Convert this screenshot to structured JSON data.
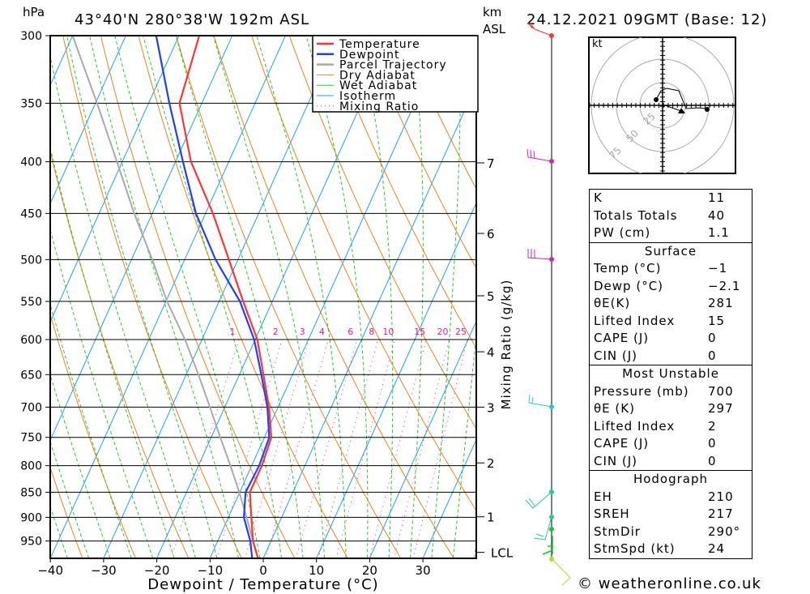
{
  "header": {
    "unit_left": "hPa",
    "location": "43°40'N  280°38'W  192m  ASL",
    "unit_km": "km",
    "unit_asl": "ASL",
    "datetime": "24.12.2021  09GMT  (Base: 12)"
  },
  "chart_data": {
    "type": "line",
    "title": "43°40'N 280°38'W 192m ASL",
    "xlabel": "Dewpoint / Temperature (°C)",
    "ylabel": "hPa",
    "y2label": "Mixing Ratio (g/kg)",
    "xlim": [
      -40,
      40
    ],
    "ylim": [
      988,
      300
    ],
    "x_ticks": [
      "−40",
      "−30",
      "−20",
      "−10",
      "0",
      "10",
      "20",
      "30"
    ],
    "x_tick_values": [
      -40,
      -30,
      -20,
      -10,
      0,
      10,
      20,
      30
    ],
    "y_ticks": [
      300,
      350,
      400,
      450,
      500,
      550,
      600,
      650,
      700,
      750,
      800,
      850,
      900,
      950
    ],
    "km_ticks": [
      {
        "km": "7",
        "p": 401
      },
      {
        "km": "6",
        "p": 471
      },
      {
        "km": "5",
        "p": 543
      },
      {
        "km": "4",
        "p": 617
      },
      {
        "km": "3",
        "p": 700
      },
      {
        "km": "2",
        "p": 795
      },
      {
        "km": "1",
        "p": 899
      },
      {
        "km": "LCL",
        "p": 975
      }
    ],
    "mixing_ratios": [
      "1",
      "2",
      "3",
      "4",
      "6",
      "8",
      "10",
      "15",
      "20",
      "25"
    ],
    "pressure": [
      300,
      350,
      400,
      450,
      500,
      550,
      600,
      650,
      700,
      750,
      800,
      850,
      900,
      950,
      988
    ],
    "series": [
      {
        "name": "Temperature",
        "color": "#ff3333",
        "values": [
          -56.2,
          -54.2,
          -47.1,
          -38.6,
          -31.7,
          -25.5,
          -19.6,
          -15.5,
          -11.7,
          -8.7,
          -8.1,
          -8.1,
          -5.7,
          -3.4,
          -1.0
        ]
      },
      {
        "name": "Dewpoint",
        "color": "#1f3fff",
        "values": [
          -64.3,
          -56.1,
          -48.6,
          -41.8,
          -34.2,
          -26.1,
          -20.2,
          -15.9,
          -12.0,
          -9.1,
          -8.6,
          -8.9,
          -7.1,
          -3.9,
          -2.1
        ]
      },
      {
        "name": "Parcel Trajectory",
        "color": "#aaaaaa",
        "values": [
          -80.0,
          -69.7,
          -61.0,
          -53.4,
          -46.1,
          -39.8,
          -33.2,
          -27.7,
          -22.8,
          -18.3,
          -14.0,
          -10.1,
          -6.6,
          -3.4,
          -1.0
        ]
      }
    ],
    "legend": {
      "placement": "top-right",
      "items": [
        {
          "label": "Temperature",
          "color": "#ff3333"
        },
        {
          "label": "Dewpoint",
          "color": "#1f3fff"
        },
        {
          "label": "Parcel Trajectory",
          "color": "#aaaaaa"
        },
        {
          "label": "Dry Adiabat",
          "color": "#f08020"
        },
        {
          "label": "Wet Adiabat",
          "color": "#22cc22"
        },
        {
          "label": "Isotherm",
          "color": "#1aa0ff"
        },
        {
          "label": "Mixing Ratio",
          "color": "#ff1493"
        }
      ]
    },
    "grid": true
  },
  "hodograph": {
    "unit": "kt",
    "rings": [
      "25",
      "50",
      "75"
    ]
  },
  "stats": {
    "indices": [
      {
        "label": "K",
        "value": "11"
      },
      {
        "label": "Totals Totals",
        "value": "40"
      },
      {
        "label": "PW (cm)",
        "value": "1.1"
      }
    ],
    "surface": {
      "title": "Surface",
      "rows": [
        {
          "label": "Temp (°C)",
          "value": "−1"
        },
        {
          "label": "Dewp (°C)",
          "value": "−2.1"
        },
        {
          "label": "θE(K)",
          "value": "281"
        },
        {
          "label": "Lifted Index",
          "value": "15"
        },
        {
          "label": "CAPE (J)",
          "value": "0"
        },
        {
          "label": "CIN (J)",
          "value": "0"
        }
      ]
    },
    "most_unstable": {
      "title": "Most Unstable",
      "rows": [
        {
          "label": "Pressure (mb)",
          "value": "700"
        },
        {
          "label": "θE (K)",
          "value": "297"
        },
        {
          "label": "Lifted Index",
          "value": "2"
        },
        {
          "label": "CAPE (J)",
          "value": "0"
        },
        {
          "label": "CIN (J)",
          "value": "0"
        }
      ]
    },
    "hodograph": {
      "title": "Hodograph",
      "rows": [
        {
          "label": "EH",
          "value": "210"
        },
        {
          "label": "SREH",
          "value": "217"
        },
        {
          "label": "StmDir",
          "value": "290°"
        },
        {
          "label": "StmSpd (kt)",
          "value": "24"
        }
      ]
    }
  },
  "footer": {
    "copyright": "© weatheronline.co.uk"
  }
}
